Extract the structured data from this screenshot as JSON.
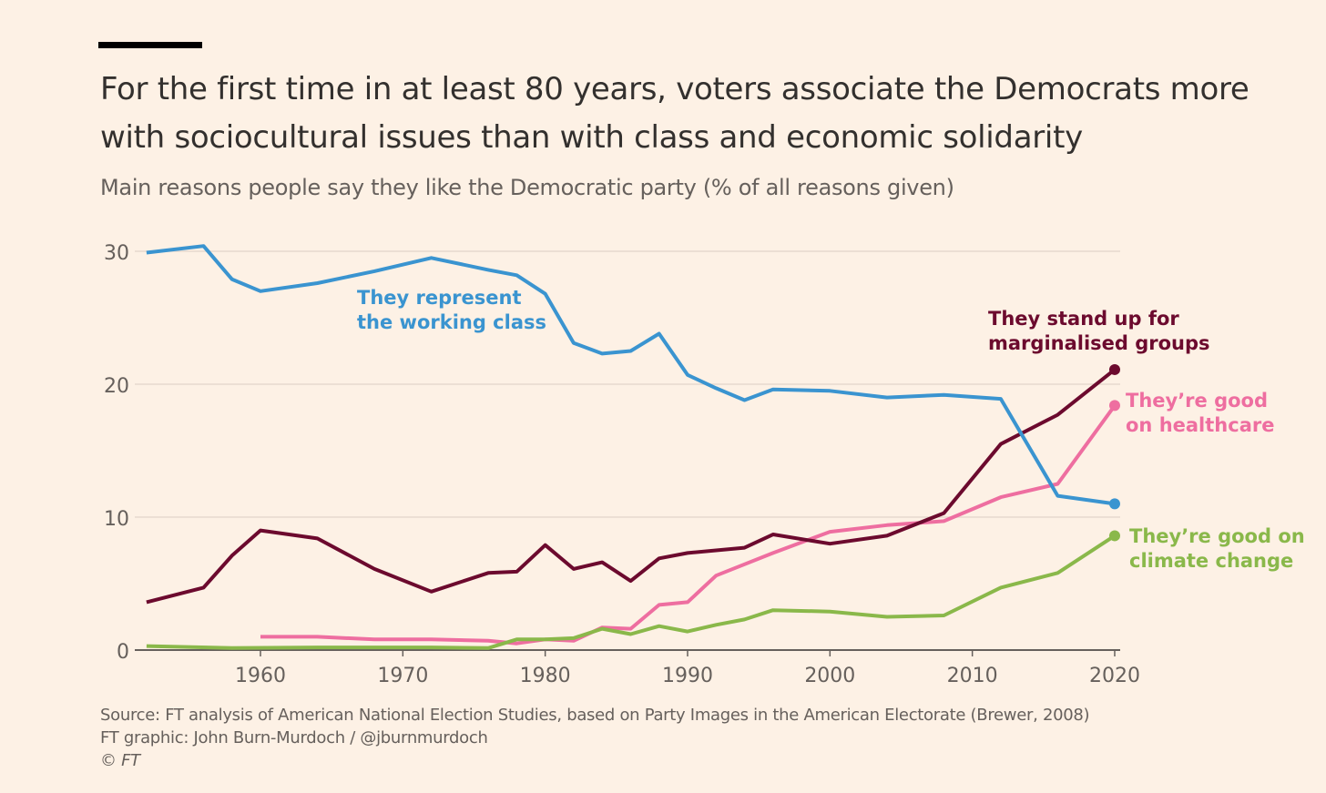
{
  "chart_data": {
    "type": "line",
    "title": "For the first time in at least 80 years, voters associate the Democrats more with sociocultural issues than with class and economic solidarity",
    "subtitle": "Main reasons people say they like the Democratic party (% of all reasons given)",
    "xlabel": "",
    "ylabel": "",
    "xlim": [
      1951,
      2021
    ],
    "ylim": [
      0,
      30
    ],
    "x_ticks": [
      "1960",
      "1970",
      "1980",
      "1990",
      "2000",
      "2010",
      "2020"
    ],
    "y_ticks": [
      "0",
      "10",
      "20",
      "30"
    ],
    "grid": true,
    "series": [
      {
        "name": "They represent the working class",
        "label_lines": [
          "They represent",
          "the working class"
        ],
        "color": "#3a94d0",
        "x": [
          1952,
          1956,
          1958,
          1960,
          1964,
          1968,
          1972,
          1976,
          1978,
          1980,
          1982,
          1984,
          1986,
          1988,
          1990,
          1992,
          1994,
          1996,
          2000,
          2004,
          2008,
          2012,
          2016,
          2020
        ],
        "y": [
          29.9,
          30.4,
          27.9,
          27.0,
          27.6,
          28.5,
          29.5,
          28.6,
          28.2,
          26.8,
          23.1,
          22.3,
          22.5,
          23.8,
          20.7,
          19.7,
          18.8,
          19.6,
          19.5,
          19.0,
          19.2,
          18.9,
          11.6,
          11.0
        ]
      },
      {
        "name": "They stand up for marginalised groups",
        "label_lines": [
          "They stand up for",
          "marginalised groups"
        ],
        "color": "#6c0a2e",
        "x": [
          1952,
          1956,
          1958,
          1960,
          1964,
          1968,
          1972,
          1976,
          1978,
          1980,
          1982,
          1984,
          1986,
          1988,
          1990,
          1992,
          1994,
          1996,
          2000,
          2004,
          2008,
          2012,
          2016,
          2020
        ],
        "y": [
          3.6,
          4.7,
          7.1,
          9.0,
          8.4,
          6.1,
          4.4,
          5.8,
          5.9,
          7.9,
          6.1,
          6.6,
          5.2,
          6.9,
          7.3,
          7.5,
          7.7,
          8.7,
          8.0,
          8.6,
          10.3,
          15.5,
          17.7,
          21.1
        ]
      },
      {
        "name": "They're good on healthcare",
        "label_lines": [
          "They’re good",
          "on healthcare"
        ],
        "color": "#ee6ea0",
        "x": [
          1960,
          1964,
          1968,
          1972,
          1976,
          1978,
          1980,
          1982,
          1984,
          1986,
          1988,
          1990,
          1992,
          1996,
          2000,
          2004,
          2008,
          2012,
          2016,
          2020
        ],
        "y": [
          1.0,
          1.0,
          0.8,
          0.8,
          0.7,
          0.5,
          0.8,
          0.7,
          1.7,
          1.6,
          3.4,
          3.6,
          5.6,
          7.3,
          8.9,
          9.4,
          9.7,
          11.5,
          12.5,
          18.4
        ]
      },
      {
        "name": "They're good on climate change",
        "label_lines": [
          "They’re good on",
          "climate change"
        ],
        "color": "#8ab84a",
        "x": [
          1952,
          1958,
          1964,
          1972,
          1976,
          1978,
          1980,
          1982,
          1984,
          1986,
          1988,
          1990,
          1992,
          1994,
          1996,
          2000,
          2004,
          2008,
          2012,
          2016,
          2020
        ],
        "y": [
          0.3,
          0.15,
          0.2,
          0.2,
          0.15,
          0.8,
          0.8,
          0.9,
          1.6,
          1.2,
          1.8,
          1.4,
          1.9,
          2.3,
          3.0,
          2.9,
          2.5,
          2.6,
          4.7,
          5.8,
          8.6
        ]
      }
    ]
  },
  "footer": {
    "source": "Source: FT analysis of American National Election Studies, based on Party Images in the American Electorate (Brewer, 2008)",
    "graphic": "FT graphic: John Burn-Murdoch / @jburnmurdoch",
    "copyright": "© FT"
  }
}
